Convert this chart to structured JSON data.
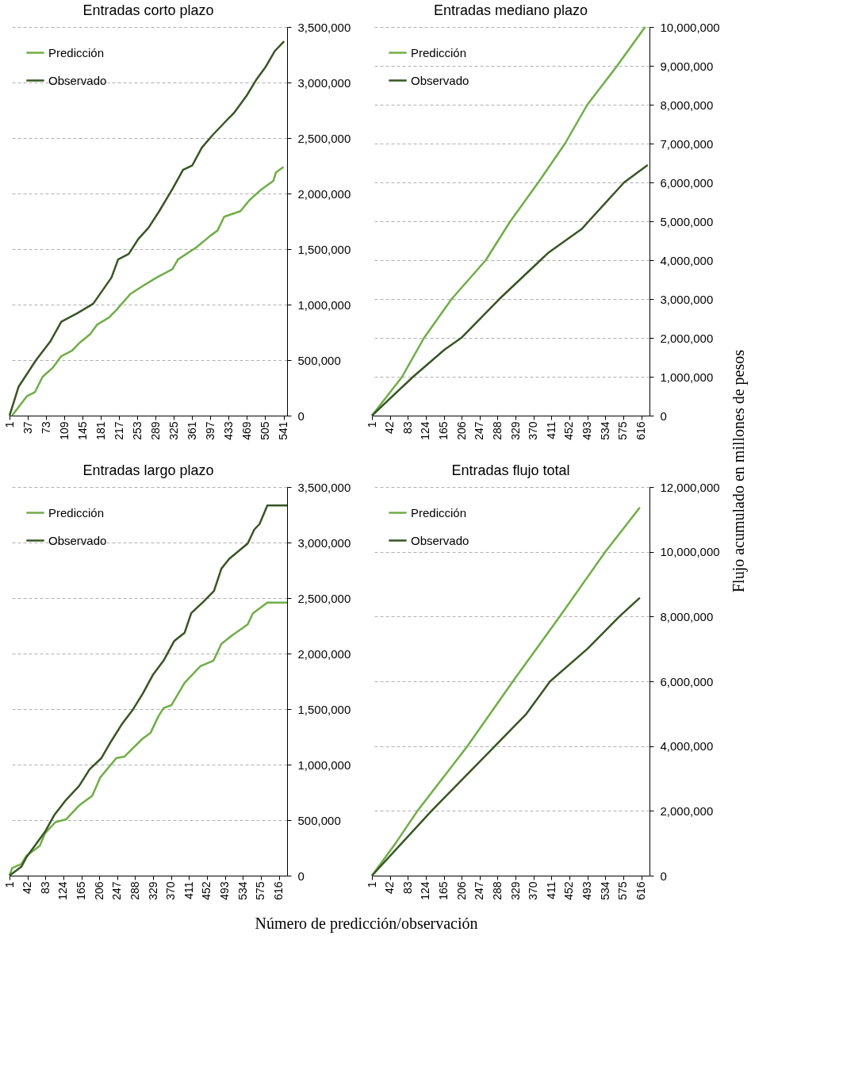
{
  "chart_data": [
    {
      "type": "line",
      "title": "Entradas corto plazo",
      "xlim": [
        1,
        548
      ],
      "xticks": [
        1,
        37,
        73,
        109,
        145,
        181,
        217,
        253,
        289,
        325,
        361,
        397,
        433,
        469,
        505,
        541
      ],
      "ylim": [
        0,
        3500000
      ],
      "yticks": [
        0,
        {
          "value": 500000,
          "label": "500,000"
        },
        {
          "value": 1000000,
          "label": "1,000,000"
        },
        {
          "value": 1500000,
          "label": "1,500,000"
        },
        {
          "value": 2000000,
          "label": "2,000,000"
        },
        {
          "value": 2500000,
          "label": "2,500,000"
        },
        {
          "value": 3000000,
          "label": "3,000,000"
        },
        {
          "value": 3500000,
          "label": "3,500,000"
        }
      ],
      "grid": "y",
      "legend": "top left",
      "line_style": "solid",
      "series": [
        {
          "name": "Predicción",
          "color": "#70ad47",
          "x": [
            6,
            35,
            51,
            66,
            87,
            103,
            124,
            140,
            160,
            174,
            197,
            213,
            239,
            260,
            291,
            322,
            333,
            370,
            396,
            411,
            424,
            456,
            474,
            495,
            521,
            526,
            541
          ],
          "values": [
            0,
            174000,
            211000,
            348000,
            435000,
            535000,
            585000,
            659000,
            734000,
            821000,
            883000,
            958000,
            1095000,
            1157000,
            1244000,
            1319000,
            1406000,
            1518000,
            1617000,
            1667000,
            1791000,
            1841000,
            1941000,
            2028000,
            2115000,
            2189000,
            2239000
          ]
        },
        {
          "name": "Observado",
          "color": "#375623",
          "x": [
            1,
            19,
            53,
            82,
            103,
            134,
            166,
            202,
            215,
            236,
            255,
            275,
            296,
            322,
            343,
            361,
            380,
            401,
            427,
            443,
            469,
            487,
            505,
            524,
            542
          ],
          "values": [
            0,
            261000,
            498000,
            672000,
            846000,
            921000,
            1008000,
            1244000,
            1406000,
            1456000,
            1592000,
            1692000,
            1841000,
            2040000,
            2214000,
            2252000,
            2413000,
            2525000,
            2650000,
            2724000,
            2886000,
            3023000,
            3135000,
            3284000,
            3371000
          ]
        }
      ]
    },
    {
      "type": "line",
      "title": "Entradas mediano  plazo",
      "xlim": [
        1,
        635
      ],
      "xticks": [
        1,
        42,
        83,
        124,
        165,
        206,
        247,
        288,
        329,
        370,
        411,
        452,
        493,
        534,
        575,
        616
      ],
      "ylim": [
        0,
        10000000
      ],
      "yticks": [
        0,
        {
          "value": 1000000,
          "label": "1,000,000"
        },
        {
          "value": 2000000,
          "label": "2,000,000"
        },
        {
          "value": 3000000,
          "label": "3,000,000"
        },
        {
          "value": 4000000,
          "label": "4,000,000"
        },
        {
          "value": 5000000,
          "label": "5,000,000"
        },
        {
          "value": 6000000,
          "label": "6,000,000"
        },
        {
          "value": 7000000,
          "label": "7,000,000"
        },
        {
          "value": 8000000,
          "label": "8,000,000"
        },
        {
          "value": 9000000,
          "label": "9,000,000"
        },
        {
          "value": 10000000,
          "label": "10,000,000"
        }
      ],
      "grid": "y",
      "legend": "top left",
      "line_style": "solid",
      "series": [
        {
          "name": "Predicción",
          "color": "#70ad47",
          "x": [
            1,
            70,
            120,
            183,
            261,
            317,
            381,
            442,
            493,
            561,
            625
          ],
          "values": [
            0,
            1000000,
            2000000,
            3000000,
            4000000,
            5000000,
            6000000,
            7000000,
            8000000,
            9000000,
            10000000
          ]
        },
        {
          "name": "Observado",
          "color": "#375623",
          "x": [
            1,
            95,
            167,
            205,
            292,
            386,
            405,
            480,
            496,
            577,
            631
          ],
          "values": [
            0,
            1000000,
            1700000,
            2000000,
            3000000,
            4000000,
            4200000,
            4800000,
            5000000,
            6000000,
            6450000
          ]
        }
      ]
    },
    {
      "type": "line",
      "title": "Entradas largo plazo",
      "xlim": [
        1,
        635
      ],
      "xticks": [
        1,
        42,
        83,
        124,
        165,
        206,
        247,
        288,
        329,
        370,
        411,
        452,
        493,
        534,
        575,
        616
      ],
      "ylim": [
        0,
        3500000
      ],
      "yticks": [
        0,
        {
          "value": 500000,
          "label": "500,000"
        },
        {
          "value": 1000000,
          "label": "1,000,000"
        },
        {
          "value": 1500000,
          "label": "1,500,000"
        },
        {
          "value": 2000000,
          "label": "2,000,000"
        },
        {
          "value": 2500000,
          "label": "2,500,000"
        },
        {
          "value": 3000000,
          "label": "3,000,000"
        },
        {
          "value": 3500000,
          "label": "3,500,000"
        }
      ],
      "grid": "y",
      "legend": "top left",
      "line_style": "solid",
      "series": [
        {
          "name": "Predicción",
          "color": "#70ad47",
          "x": [
            1,
            7,
            28,
            40,
            70,
            82,
            106,
            130,
            160,
            190,
            208,
            245,
            263,
            305,
            323,
            341,
            353,
            371,
            401,
            437,
            467,
            485,
            509,
            545,
            557,
            590,
            635
          ],
          "values": [
            0,
            68000,
            105000,
            181000,
            268000,
            381000,
            482000,
            507000,
            632000,
            720000,
            883000,
            1059000,
            1071000,
            1234000,
            1285000,
            1435000,
            1510000,
            1536000,
            1736000,
            1887000,
            1937000,
            2087000,
            2163000,
            2263000,
            2363000,
            2459000,
            2459000
          ]
        },
        {
          "name": "Observado",
          "color": "#375623",
          "x": [
            1,
            28,
            40,
            82,
            103,
            130,
            160,
            184,
            211,
            233,
            257,
            281,
            305,
            329,
            353,
            377,
            401,
            416,
            443,
            468,
            485,
            503,
            545,
            560,
            572,
            590,
            635
          ],
          "values": [
            0,
            80000,
            168000,
            394000,
            544000,
            682000,
            808000,
            958000,
            1059000,
            1209000,
            1360000,
            1485000,
            1636000,
            1811000,
            1937000,
            2112000,
            2188000,
            2363000,
            2464000,
            2564000,
            2765000,
            2853000,
            2991000,
            3116000,
            3166000,
            3334000,
            3334000
          ]
        }
      ]
    },
    {
      "type": "line",
      "title": "Entradas flujo total",
      "xlim": [
        1,
        635
      ],
      "xticks": [
        1,
        42,
        83,
        124,
        165,
        206,
        247,
        288,
        329,
        370,
        411,
        452,
        493,
        534,
        575,
        616
      ],
      "ylim": [
        0,
        12000000
      ],
      "yticks": [
        0,
        {
          "value": 2000000,
          "label": "2,000,000"
        },
        {
          "value": 4000000,
          "label": "4,000,000"
        },
        {
          "value": 6000000,
          "label": "6,000,000"
        },
        {
          "value": 8000000,
          "label": "8,000,000"
        },
        {
          "value": 10000000,
          "label": "10,000,000"
        },
        {
          "value": 12000000,
          "label": "12,000,000"
        }
      ],
      "grid": "y",
      "legend": "top left",
      "line_style": "solid",
      "annotations": [
        "Número de predicción/observación",
        "Flujo acumulado en millones de pesos"
      ],
      "series": [
        {
          "name": "Predicción",
          "color": "#70ad47",
          "x": [
            1,
            55,
            105,
            219,
            323,
            430,
            534,
            613
          ],
          "values": [
            0,
            1000000,
            2000000,
            4000000,
            6000000,
            8000000,
            10000000,
            11370000
          ]
        },
        {
          "name": "Observado",
          "color": "#375623",
          "x": [
            1,
            137,
            282,
            354,
            408,
            493,
            566,
            613
          ],
          "values": [
            0,
            2000000,
            4000000,
            5000000,
            6000000,
            7000000,
            8000000,
            8580000
          ]
        }
      ]
    }
  ]
}
